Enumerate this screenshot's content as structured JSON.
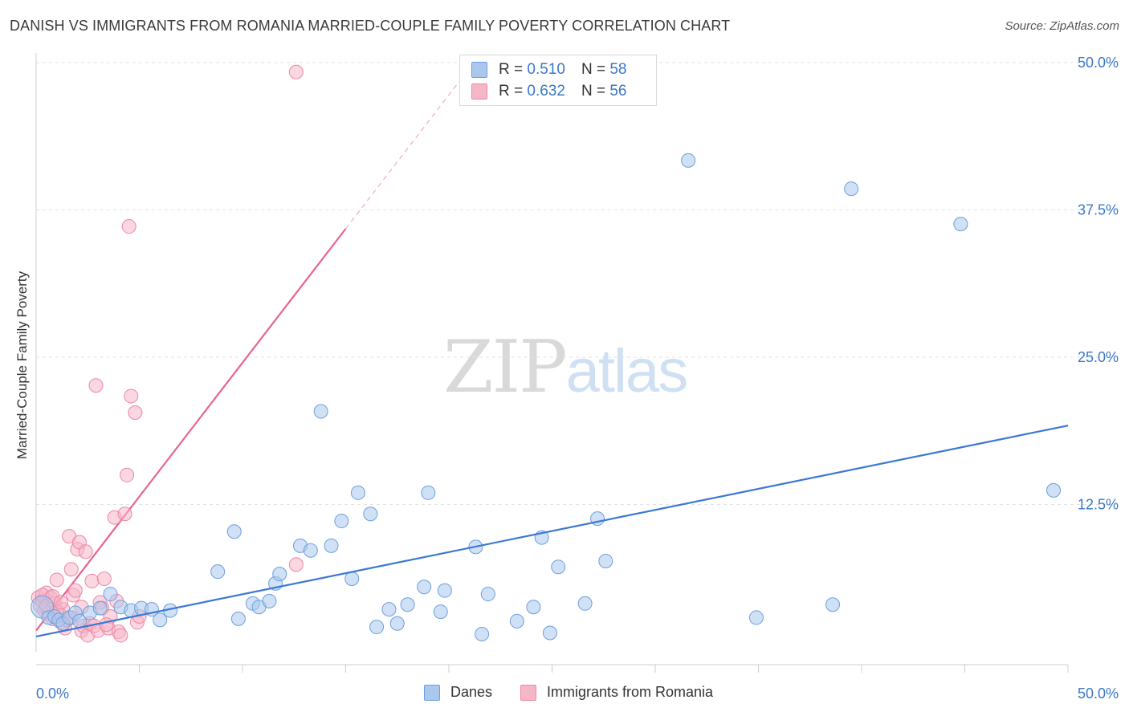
{
  "title": "DANISH VS IMMIGRANTS FROM ROMANIA MARRIED-COUPLE FAMILY POVERTY CORRELATION CHART",
  "source": "Source: ZipAtlas.com",
  "watermark": {
    "zip": "ZIP",
    "atlas": "atlas"
  },
  "legend": {
    "danes": {
      "r_label": "R =",
      "r_value": "0.510",
      "n_label": "N =",
      "n_value": "58"
    },
    "romania": {
      "r_label": "R =",
      "r_value": "0.632",
      "n_label": "N =",
      "n_value": "56"
    }
  },
  "bottom_legend": {
    "danes": "Danes",
    "romania": "Immigrants from Romania"
  },
  "colors": {
    "blue_fill": "#aac8ee",
    "blue_stroke": "#6b9fdc",
    "blue_line": "#3b78d4",
    "pink_fill": "#f5b6c8",
    "pink_stroke": "#ec87a6",
    "pink_line": "#e8638f",
    "axis_text": "#3b78c8"
  },
  "chart_data": {
    "type": "scatter",
    "title": "DANISH VS IMMIGRANTS FROM ROMANIA MARRIED-COUPLE FAMILY POVERTY CORRELATION CHART",
    "xlabel": "",
    "ylabel": "Married-Couple Family Poverty",
    "xlim": [
      0,
      50
    ],
    "ylim": [
      0,
      50
    ],
    "x_tick_labels": [
      "0.0%",
      "50.0%"
    ],
    "y_ticks": [
      12.5,
      25.0,
      37.5,
      50.0
    ],
    "y_tick_labels": [
      "12.5%",
      "25.0%",
      "37.5%",
      "50.0%"
    ],
    "grid": true,
    "series": [
      {
        "name": "Danes",
        "R": 0.51,
        "N": 58,
        "trend": {
          "x": [
            0.0,
            50.0
          ],
          "y": [
            1.3,
            19.2
          ]
        },
        "points": [
          [
            0.3,
            3.8
          ],
          [
            0.6,
            2.9
          ],
          [
            0.9,
            3.0
          ],
          [
            1.1,
            2.7
          ],
          [
            1.3,
            2.4
          ],
          [
            1.6,
            2.9
          ],
          [
            1.9,
            3.3
          ],
          [
            2.1,
            2.6
          ],
          [
            2.6,
            3.3
          ],
          [
            3.1,
            3.7
          ],
          [
            3.6,
            4.9
          ],
          [
            4.1,
            3.8
          ],
          [
            4.6,
            3.5
          ],
          [
            5.1,
            3.7
          ],
          [
            5.6,
            3.6
          ],
          [
            6.0,
            2.7
          ],
          [
            6.5,
            3.5
          ],
          [
            8.8,
            6.8
          ],
          [
            9.6,
            10.2
          ],
          [
            9.8,
            2.8
          ],
          [
            10.5,
            4.1
          ],
          [
            10.8,
            3.8
          ],
          [
            11.3,
            4.3
          ],
          [
            11.6,
            5.8
          ],
          [
            11.8,
            6.6
          ],
          [
            12.8,
            9.0
          ],
          [
            13.3,
            8.6
          ],
          [
            13.8,
            20.4
          ],
          [
            14.3,
            9.0
          ],
          [
            14.8,
            11.1
          ],
          [
            15.3,
            6.2
          ],
          [
            15.6,
            13.5
          ],
          [
            16.2,
            11.7
          ],
          [
            16.5,
            2.1
          ],
          [
            17.1,
            3.6
          ],
          [
            17.5,
            2.4
          ],
          [
            18.0,
            4.0
          ],
          [
            18.8,
            5.5
          ],
          [
            19.0,
            13.5
          ],
          [
            19.6,
            3.4
          ],
          [
            19.8,
            5.2
          ],
          [
            21.3,
            8.9
          ],
          [
            21.6,
            1.5
          ],
          [
            21.9,
            4.9
          ],
          [
            23.3,
            2.6
          ],
          [
            24.1,
            3.8
          ],
          [
            24.5,
            9.7
          ],
          [
            24.9,
            1.6
          ],
          [
            25.3,
            7.2
          ],
          [
            26.6,
            4.1
          ],
          [
            27.2,
            11.3
          ],
          [
            27.6,
            7.7
          ],
          [
            31.6,
            41.7
          ],
          [
            34.9,
            2.9
          ],
          [
            38.6,
            4.0
          ],
          [
            39.5,
            39.3
          ],
          [
            44.8,
            36.3
          ],
          [
            49.3,
            13.7
          ]
        ]
      },
      {
        "name": "Immigrants from Romania",
        "R": 0.632,
        "N": 56,
        "trend_solid": {
          "x": [
            0.0,
            15.0
          ],
          "y": [
            1.8,
            35.9
          ]
        },
        "trend_dashed": {
          "x": [
            15.0,
            20.5
          ],
          "y": [
            35.9,
            48.4
          ]
        },
        "points": [
          [
            0.1,
            4.6
          ],
          [
            0.2,
            3.9
          ],
          [
            0.3,
            4.3
          ],
          [
            0.4,
            3.5
          ],
          [
            0.5,
            5.0
          ],
          [
            0.6,
            3.3
          ],
          [
            0.7,
            4.6
          ],
          [
            0.8,
            2.8
          ],
          [
            0.9,
            4.1
          ],
          [
            1.0,
            6.1
          ],
          [
            1.1,
            3.3
          ],
          [
            1.2,
            2.5
          ],
          [
            1.3,
            3.6
          ],
          [
            1.4,
            2.0
          ],
          [
            1.5,
            2.7
          ],
          [
            1.6,
            9.8
          ],
          [
            1.7,
            7.0
          ],
          [
            1.8,
            4.8
          ],
          [
            1.9,
            5.2
          ],
          [
            2.0,
            8.7
          ],
          [
            2.1,
            9.3
          ],
          [
            2.2,
            1.8
          ],
          [
            2.3,
            2.2
          ],
          [
            2.4,
            8.5
          ],
          [
            2.5,
            1.4
          ],
          [
            2.6,
            2.4
          ],
          [
            2.7,
            6.0
          ],
          [
            2.8,
            2.2
          ],
          [
            2.9,
            22.6
          ],
          [
            3.0,
            1.8
          ],
          [
            3.1,
            4.2
          ],
          [
            3.2,
            3.7
          ],
          [
            3.3,
            6.2
          ],
          [
            3.5,
            2.0
          ],
          [
            3.6,
            3.0
          ],
          [
            3.8,
            11.4
          ],
          [
            3.9,
            4.3
          ],
          [
            4.0,
            1.7
          ],
          [
            4.1,
            1.4
          ],
          [
            4.3,
            11.7
          ],
          [
            4.4,
            15.0
          ],
          [
            4.5,
            36.1
          ],
          [
            4.6,
            21.7
          ],
          [
            4.8,
            20.3
          ],
          [
            4.9,
            2.5
          ],
          [
            5.0,
            3.0
          ],
          [
            12.6,
            7.4
          ],
          [
            12.6,
            49.2
          ],
          [
            0.3,
            4.8
          ],
          [
            0.5,
            3.9
          ],
          [
            0.8,
            4.7
          ],
          [
            1.0,
            3.4
          ],
          [
            1.2,
            4.2
          ],
          [
            1.7,
            2.9
          ],
          [
            2.2,
            3.8
          ],
          [
            3.4,
            2.3
          ]
        ]
      }
    ]
  }
}
